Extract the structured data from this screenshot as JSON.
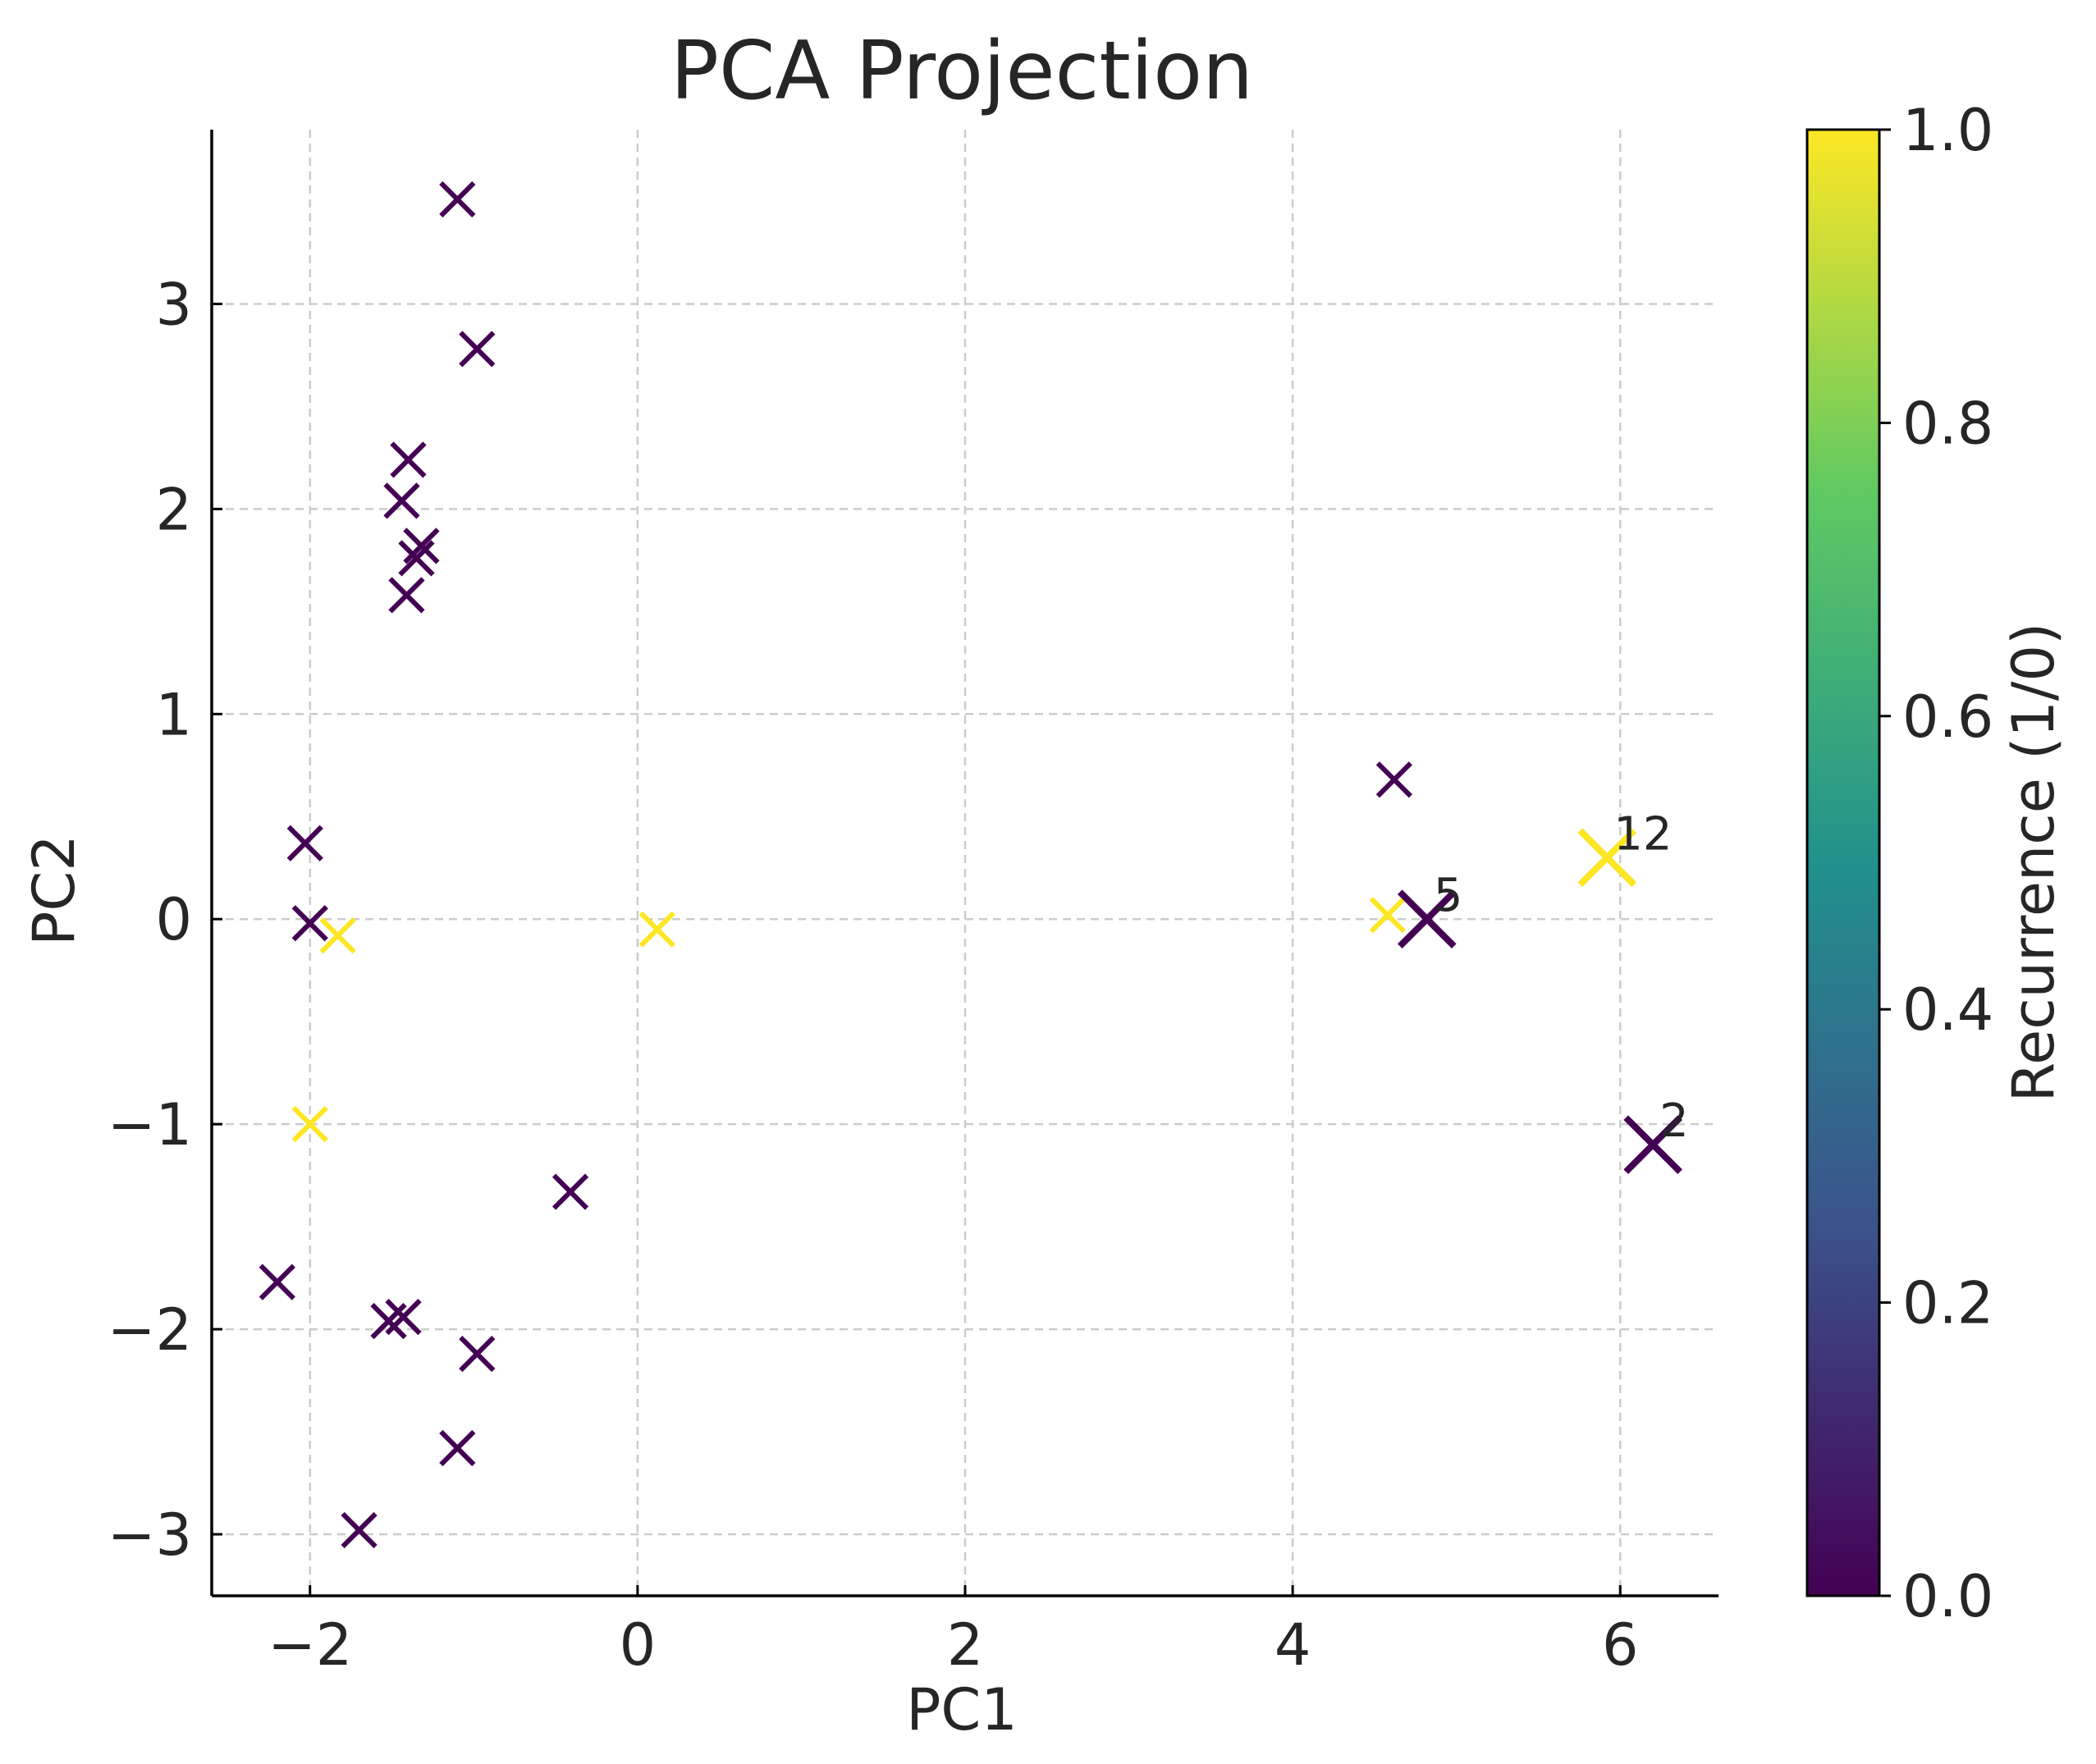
{
  "chart_data": {
    "type": "scatter",
    "title": "PCA Projection",
    "xlabel": "PC1",
    "ylabel": "PC2",
    "xlim": [
      -2.6,
      6.6
    ],
    "ylim": [
      -3.3,
      3.85
    ],
    "xticks": [
      -2,
      0,
      2,
      4,
      6
    ],
    "xtick_labels": [
      "−2",
      "0",
      "2",
      "4",
      "6"
    ],
    "yticks": [
      -3,
      -2,
      -1,
      0,
      1,
      2,
      3
    ],
    "ytick_labels": [
      "−3",
      "−2",
      "−1",
      "0",
      "1",
      "2",
      "3"
    ],
    "grid": true,
    "marker": "x",
    "colormap": "viridis",
    "colormap_stops": [
      "#440154",
      "#3b528b",
      "#21918c",
      "#5ec962",
      "#fde725"
    ],
    "colorbar": {
      "label": "Recurrence (1/0)",
      "range": [
        0.0,
        1.0
      ],
      "ticks": [
        0.0,
        0.2,
        0.4,
        0.6,
        0.8,
        1.0
      ],
      "tick_labels": [
        "0.0",
        "0.2",
        "0.4",
        "0.6",
        "0.8",
        "1.0"
      ]
    },
    "points": [
      {
        "x": -1.1,
        "y": 3.51,
        "recurrence": 0
      },
      {
        "x": -0.98,
        "y": 2.78,
        "recurrence": 0
      },
      {
        "x": -1.4,
        "y": 2.24,
        "recurrence": 0
      },
      {
        "x": -1.44,
        "y": 2.04,
        "recurrence": 0
      },
      {
        "x": -1.32,
        "y": 1.82,
        "recurrence": 0
      },
      {
        "x": -1.35,
        "y": 1.76,
        "recurrence": 0
      },
      {
        "x": -1.41,
        "y": 1.58,
        "recurrence": 0
      },
      {
        "x": -2.03,
        "y": 0.37,
        "recurrence": 0
      },
      {
        "x": -2.0,
        "y": -0.02,
        "recurrence": 0
      },
      {
        "x": -1.83,
        "y": -0.08,
        "recurrence": 1
      },
      {
        "x": 0.12,
        "y": -0.05,
        "recurrence": 1
      },
      {
        "x": -2.0,
        "y": -1.0,
        "recurrence": 1
      },
      {
        "x": -0.41,
        "y": -1.33,
        "recurrence": 0
      },
      {
        "x": -2.2,
        "y": -1.77,
        "recurrence": 0
      },
      {
        "x": -1.52,
        "y": -1.96,
        "recurrence": 0
      },
      {
        "x": -1.43,
        "y": -1.94,
        "recurrence": 0
      },
      {
        "x": -0.98,
        "y": -2.12,
        "recurrence": 0
      },
      {
        "x": -1.1,
        "y": -2.58,
        "recurrence": 0
      },
      {
        "x": -1.7,
        "y": -2.98,
        "recurrence": 0
      },
      {
        "x": 4.62,
        "y": 0.68,
        "recurrence": 0
      },
      {
        "x": 4.58,
        "y": 0.02,
        "recurrence": 1
      },
      {
        "x": 4.82,
        "y": 0.0,
        "recurrence": 0,
        "highlight": true,
        "label": "5"
      },
      {
        "x": 5.92,
        "y": 0.3,
        "recurrence": 1,
        "highlight": true,
        "label": "12"
      },
      {
        "x": 6.2,
        "y": -1.1,
        "recurrence": 0,
        "highlight": true,
        "label": "2"
      }
    ]
  }
}
